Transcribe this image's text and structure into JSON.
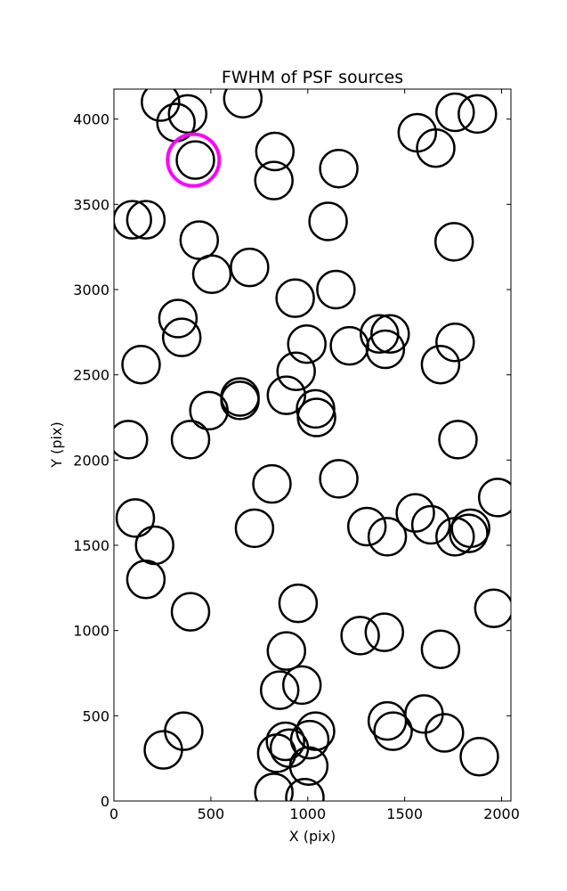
{
  "chart_data": {
    "type": "scatter",
    "title": "FWHM of PSF sources",
    "xlabel": "X (pix)",
    "ylabel": "Y (pix)",
    "xlim": [
      0,
      2048
    ],
    "ylim": [
      0,
      4176
    ],
    "xticks": [
      0,
      500,
      1000,
      1500,
      2000
    ],
    "yticks": [
      0,
      500,
      1000,
      1500,
      2000,
      2500,
      3000,
      3500,
      4000
    ],
    "grid": false,
    "marker": "open-circle",
    "colors": {
      "sources": "#000000",
      "highlight": "#ff00ff"
    },
    "highlight": {
      "x": 410,
      "y": 3760
    },
    "points": [
      {
        "x": 240,
        "y": 4100
      },
      {
        "x": 320,
        "y": 3980
      },
      {
        "x": 380,
        "y": 4030
      },
      {
        "x": 665,
        "y": 4120
      },
      {
        "x": 1760,
        "y": 4040
      },
      {
        "x": 1875,
        "y": 4030
      },
      {
        "x": 1565,
        "y": 3920
      },
      {
        "x": 1660,
        "y": 3830
      },
      {
        "x": 420,
        "y": 3760
      },
      {
        "x": 830,
        "y": 3810
      },
      {
        "x": 825,
        "y": 3640
      },
      {
        "x": 1160,
        "y": 3710
      },
      {
        "x": 95,
        "y": 3410
      },
      {
        "x": 165,
        "y": 3410
      },
      {
        "x": 1105,
        "y": 3400
      },
      {
        "x": 440,
        "y": 3290
      },
      {
        "x": 1755,
        "y": 3280
      },
      {
        "x": 700,
        "y": 3130
      },
      {
        "x": 505,
        "y": 3090
      },
      {
        "x": 935,
        "y": 2950
      },
      {
        "x": 1145,
        "y": 3000
      },
      {
        "x": 330,
        "y": 2830
      },
      {
        "x": 350,
        "y": 2720
      },
      {
        "x": 995,
        "y": 2680
      },
      {
        "x": 1215,
        "y": 2670
      },
      {
        "x": 1370,
        "y": 2740
      },
      {
        "x": 1425,
        "y": 2740
      },
      {
        "x": 1400,
        "y": 2650
      },
      {
        "x": 1760,
        "y": 2690
      },
      {
        "x": 1685,
        "y": 2560
      },
      {
        "x": 140,
        "y": 2560
      },
      {
        "x": 940,
        "y": 2520
      },
      {
        "x": 650,
        "y": 2370
      },
      {
        "x": 650,
        "y": 2350
      },
      {
        "x": 890,
        "y": 2380
      },
      {
        "x": 1040,
        "y": 2300
      },
      {
        "x": 1045,
        "y": 2250
      },
      {
        "x": 490,
        "y": 2290
      },
      {
        "x": 75,
        "y": 2120
      },
      {
        "x": 395,
        "y": 2120
      },
      {
        "x": 1775,
        "y": 2120
      },
      {
        "x": 815,
        "y": 1860
      },
      {
        "x": 1160,
        "y": 1890
      },
      {
        "x": 1980,
        "y": 1780
      },
      {
        "x": 110,
        "y": 1660
      },
      {
        "x": 725,
        "y": 1600
      },
      {
        "x": 1305,
        "y": 1610
      },
      {
        "x": 1410,
        "y": 1550
      },
      {
        "x": 1555,
        "y": 1690
      },
      {
        "x": 1635,
        "y": 1620
      },
      {
        "x": 1760,
        "y": 1550
      },
      {
        "x": 1840,
        "y": 1600
      },
      {
        "x": 1830,
        "y": 1570
      },
      {
        "x": 210,
        "y": 1500
      },
      {
        "x": 165,
        "y": 1300
      },
      {
        "x": 950,
        "y": 1160
      },
      {
        "x": 1960,
        "y": 1130
      },
      {
        "x": 395,
        "y": 1110
      },
      {
        "x": 1270,
        "y": 970
      },
      {
        "x": 1395,
        "y": 990
      },
      {
        "x": 1685,
        "y": 890
      },
      {
        "x": 890,
        "y": 880
      },
      {
        "x": 855,
        "y": 650
      },
      {
        "x": 970,
        "y": 680
      },
      {
        "x": 360,
        "y": 410
      },
      {
        "x": 255,
        "y": 300
      },
      {
        "x": 1410,
        "y": 470
      },
      {
        "x": 1440,
        "y": 410
      },
      {
        "x": 1600,
        "y": 510
      },
      {
        "x": 1705,
        "y": 400
      },
      {
        "x": 1885,
        "y": 260
      },
      {
        "x": 1040,
        "y": 410
      },
      {
        "x": 1010,
        "y": 360
      },
      {
        "x": 885,
        "y": 350
      },
      {
        "x": 905,
        "y": 310
      },
      {
        "x": 840,
        "y": 280
      },
      {
        "x": 1005,
        "y": 205
      },
      {
        "x": 825,
        "y": 50
      },
      {
        "x": 985,
        "y": 20
      }
    ]
  }
}
